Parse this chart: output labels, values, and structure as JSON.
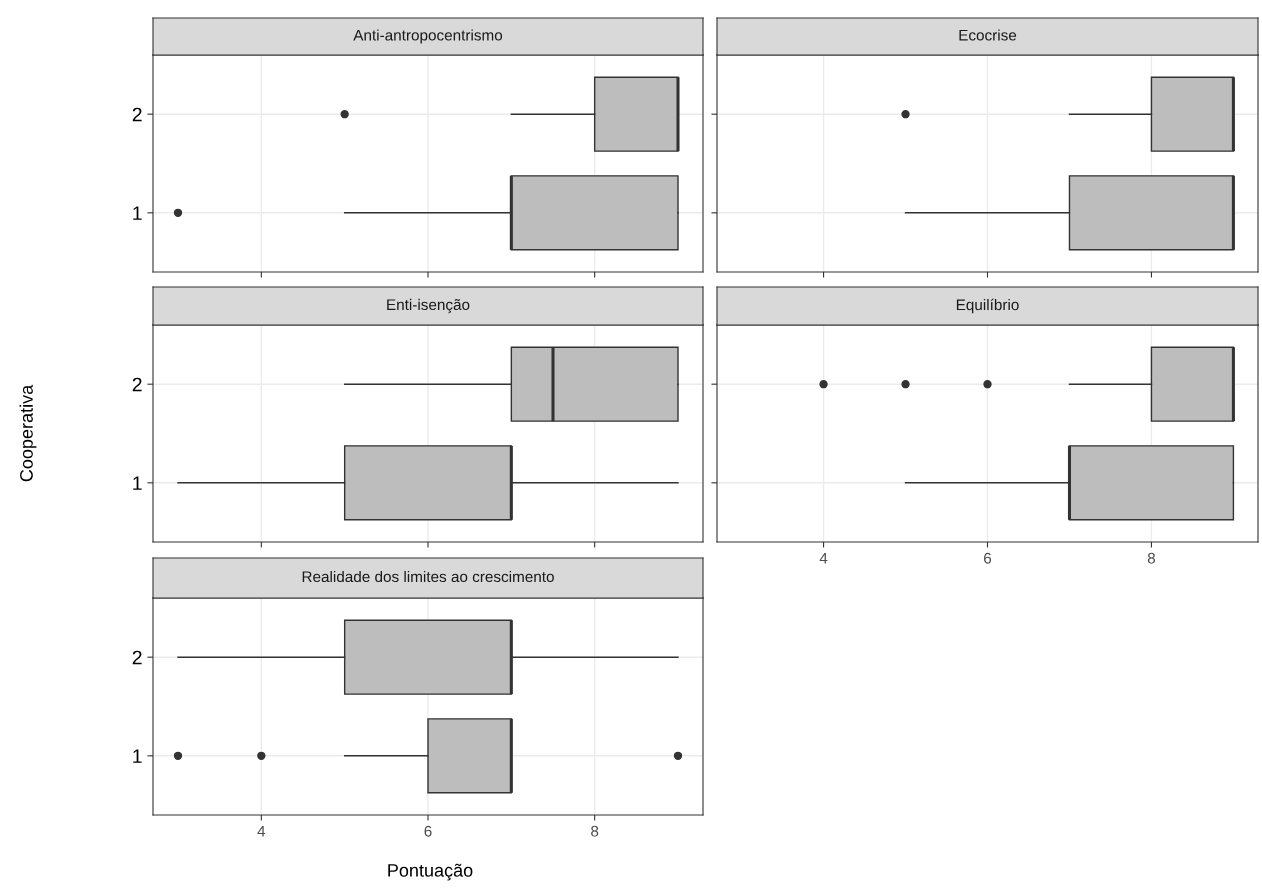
{
  "chart_data": [
    {
      "type": "box",
      "title": "Anti-antropocentrismo",
      "orientation": "horizontal",
      "categories": [
        "2",
        "1"
      ],
      "color": "#bdbdbd",
      "grid": true,
      "xlim": [
        2.7,
        9.3
      ],
      "xticks": [
        4,
        6,
        8
      ],
      "tick_labels": "y",
      "boxes": [
        {
          "low": 7,
          "q1": 8,
          "median": 9,
          "q3": 9,
          "high": 9,
          "outliers": [
            5
          ]
        },
        {
          "low": 5,
          "q1": 7,
          "median": 7,
          "q3": 9,
          "high": 9,
          "outliers": [
            3
          ]
        }
      ]
    },
    {
      "type": "box",
      "title": "Ecocrise",
      "orientation": "horizontal",
      "categories": [
        "2",
        "1"
      ],
      "color": "#bdbdbd",
      "grid": true,
      "xlim": [
        2.7,
        9.3
      ],
      "xticks": [
        4,
        6,
        8
      ],
      "tick_labels": false,
      "boxes": [
        {
          "low": 7,
          "q1": 8,
          "median": 9,
          "q3": 9,
          "high": 9,
          "outliers": [
            5
          ]
        },
        {
          "low": 5,
          "q1": 7,
          "median": 9,
          "q3": 9,
          "high": 9
        }
      ]
    },
    {
      "type": "box",
      "title": "Enti-isenção",
      "ylabel": "Cooperativa",
      "orientation": "horizontal",
      "categories": [
        "2",
        "1"
      ],
      "color": "#bdbdbd",
      "grid": true,
      "xlim": [
        2.7,
        9.3
      ],
      "xticks": [
        4,
        6,
        8
      ],
      "tick_labels": "y",
      "boxes": [
        {
          "low": 5,
          "q1": 7,
          "median": 7.5,
          "q3": 9,
          "high": 9
        },
        {
          "low": 3,
          "q1": 5,
          "median": 7,
          "q3": 7,
          "high": 9
        }
      ]
    },
    {
      "type": "box",
      "title": "Equilíbrio",
      "orientation": "horizontal",
      "categories": [
        "2",
        "1"
      ],
      "color": "#bdbdbd",
      "grid": true,
      "xlim": [
        2.7,
        9.3
      ],
      "xticks": [
        4,
        6,
        8
      ],
      "tick_labels": "x",
      "boxes": [
        {
          "low": 7,
          "q1": 8,
          "median": 9,
          "q3": 9,
          "high": 9,
          "outliers": [
            4,
            5,
            6
          ]
        },
        {
          "low": 5,
          "q1": 7,
          "median": 7,
          "q3": 9,
          "high": 9
        }
      ]
    },
    {
      "type": "box",
      "title": "Realidade dos limites ao crescimento",
      "xlabel": "Pontuação",
      "orientation": "horizontal",
      "categories": [
        "2",
        "1"
      ],
      "color": "#bdbdbd",
      "grid": true,
      "xlim": [
        2.7,
        9.3
      ],
      "xticks": [
        4,
        6,
        8
      ],
      "boxes": [
        {
          "low": 3,
          "q1": 5,
          "median": 7,
          "q3": 7,
          "high": 9
        },
        {
          "low": 5,
          "q1": 6,
          "median": 7,
          "q3": 7,
          "high": 7,
          "outliers": [
            3,
            4,
            9
          ]
        }
      ]
    }
  ]
}
